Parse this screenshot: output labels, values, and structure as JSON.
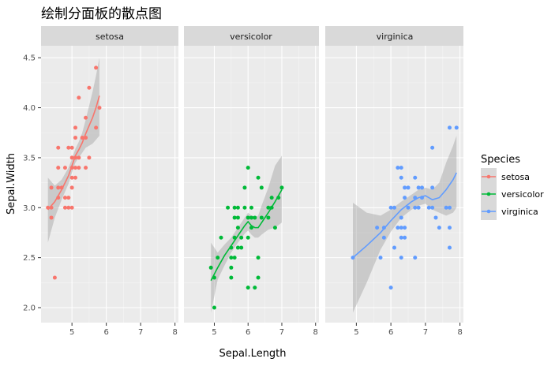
{
  "title": "绘制分面板的散点图",
  "chart_data": {
    "type": "scatter",
    "xlabel": "Sepal.Length",
    "ylabel": "Sepal.Width",
    "xlim": [
      4.1,
      8.1
    ],
    "ylim": [
      1.85,
      4.62
    ],
    "xticks": [
      5,
      6,
      7,
      8
    ],
    "xtick_labels": [
      "5",
      "6",
      "7",
      "8"
    ],
    "yticks": [
      2.0,
      2.5,
      3.0,
      3.5,
      4.0,
      4.5
    ],
    "ytick_labels": [
      "2.0",
      "2.5",
      "3.0",
      "3.5",
      "4.0",
      "4.5"
    ],
    "grid": true,
    "legend": {
      "title": "Species",
      "position": "right"
    },
    "facets": [
      {
        "name": "setosa",
        "color": "#F8766D",
        "points": [
          [
            4.3,
            3.0
          ],
          [
            4.4,
            2.9
          ],
          [
            4.4,
            3.0
          ],
          [
            4.4,
            3.2
          ],
          [
            4.5,
            2.3
          ],
          [
            4.6,
            3.1
          ],
          [
            4.6,
            3.2
          ],
          [
            4.6,
            3.4
          ],
          [
            4.6,
            3.6
          ],
          [
            4.7,
            3.2
          ],
          [
            4.8,
            3.0
          ],
          [
            4.8,
            3.1
          ],
          [
            4.8,
            3.4
          ],
          [
            4.9,
            3.0
          ],
          [
            4.9,
            3.1
          ],
          [
            4.9,
            3.6
          ],
          [
            5.0,
            3.0
          ],
          [
            5.0,
            3.2
          ],
          [
            5.0,
            3.3
          ],
          [
            5.0,
            3.4
          ],
          [
            5.0,
            3.5
          ],
          [
            5.0,
            3.6
          ],
          [
            5.1,
            3.3
          ],
          [
            5.1,
            3.4
          ],
          [
            5.1,
            3.5
          ],
          [
            5.1,
            3.7
          ],
          [
            5.1,
            3.8
          ],
          [
            5.2,
            3.4
          ],
          [
            5.2,
            3.5
          ],
          [
            5.2,
            4.1
          ],
          [
            5.3,
            3.7
          ],
          [
            5.4,
            3.4
          ],
          [
            5.4,
            3.7
          ],
          [
            5.4,
            3.9
          ],
          [
            5.5,
            3.5
          ],
          [
            5.5,
            4.2
          ],
          [
            5.7,
            3.8
          ],
          [
            5.7,
            4.4
          ],
          [
            5.8,
            4.0
          ]
        ],
        "smooth": [
          [
            4.3,
            2.98
          ],
          [
            4.5,
            3.06
          ],
          [
            4.7,
            3.18
          ],
          [
            4.9,
            3.32
          ],
          [
            5.0,
            3.42
          ],
          [
            5.1,
            3.52
          ],
          [
            5.2,
            3.58
          ],
          [
            5.3,
            3.65
          ],
          [
            5.4,
            3.74
          ],
          [
            5.5,
            3.82
          ],
          [
            5.6,
            3.9
          ],
          [
            5.7,
            4.0
          ],
          [
            5.8,
            4.12
          ]
        ],
        "band": [
          [
            4.3,
            2.65,
            3.3
          ],
          [
            4.5,
            2.9,
            3.22
          ],
          [
            4.7,
            3.08,
            3.28
          ],
          [
            4.9,
            3.24,
            3.4
          ],
          [
            5.0,
            3.35,
            3.49
          ],
          [
            5.1,
            3.45,
            3.59
          ],
          [
            5.2,
            3.5,
            3.66
          ],
          [
            5.3,
            3.55,
            3.75
          ],
          [
            5.4,
            3.6,
            3.88
          ],
          [
            5.5,
            3.62,
            4.02
          ],
          [
            5.6,
            3.64,
            4.16
          ],
          [
            5.7,
            3.68,
            4.32
          ],
          [
            5.8,
            3.72,
            4.5
          ]
        ]
      },
      {
        "name": "versicolor",
        "color": "#00BA38",
        "points": [
          [
            4.9,
            2.4
          ],
          [
            5.0,
            2.0
          ],
          [
            5.0,
            2.3
          ],
          [
            5.1,
            2.5
          ],
          [
            5.2,
            2.7
          ],
          [
            5.4,
            3.0
          ],
          [
            5.5,
            2.3
          ],
          [
            5.5,
            2.4
          ],
          [
            5.5,
            2.5
          ],
          [
            5.5,
            2.6
          ],
          [
            5.6,
            2.5
          ],
          [
            5.6,
            2.7
          ],
          [
            5.6,
            2.9
          ],
          [
            5.6,
            3.0
          ],
          [
            5.7,
            2.6
          ],
          [
            5.7,
            2.8
          ],
          [
            5.7,
            2.9
          ],
          [
            5.7,
            3.0
          ],
          [
            5.8,
            2.6
          ],
          [
            5.8,
            2.7
          ],
          [
            5.9,
            3.0
          ],
          [
            5.9,
            3.2
          ],
          [
            6.0,
            2.2
          ],
          [
            6.0,
            2.7
          ],
          [
            6.0,
            2.9
          ],
          [
            6.0,
            3.4
          ],
          [
            6.1,
            2.8
          ],
          [
            6.1,
            2.9
          ],
          [
            6.1,
            3.0
          ],
          [
            6.2,
            2.2
          ],
          [
            6.2,
            2.9
          ],
          [
            6.3,
            2.3
          ],
          [
            6.3,
            2.5
          ],
          [
            6.3,
            3.3
          ],
          [
            6.4,
            2.9
          ],
          [
            6.4,
            3.2
          ],
          [
            6.6,
            2.9
          ],
          [
            6.6,
            3.0
          ],
          [
            6.7,
            3.0
          ],
          [
            6.7,
            3.1
          ],
          [
            6.8,
            2.8
          ],
          [
            6.9,
            3.1
          ],
          [
            7.0,
            3.2
          ]
        ],
        "smooth": [
          [
            4.9,
            2.27
          ],
          [
            5.1,
            2.4
          ],
          [
            5.3,
            2.52
          ],
          [
            5.5,
            2.62
          ],
          [
            5.7,
            2.72
          ],
          [
            5.9,
            2.82
          ],
          [
            6.0,
            2.86
          ],
          [
            6.1,
            2.82
          ],
          [
            6.2,
            2.8
          ],
          [
            6.3,
            2.8
          ],
          [
            6.4,
            2.85
          ],
          [
            6.6,
            2.95
          ],
          [
            6.8,
            3.06
          ],
          [
            7.0,
            3.18
          ]
        ],
        "band": [
          [
            4.9,
            1.95,
            2.65
          ],
          [
            5.1,
            2.28,
            2.55
          ],
          [
            5.3,
            2.42,
            2.63
          ],
          [
            5.5,
            2.55,
            2.7
          ],
          [
            5.7,
            2.65,
            2.8
          ],
          [
            5.9,
            2.74,
            2.9
          ],
          [
            6.0,
            2.77,
            2.95
          ],
          [
            6.1,
            2.73,
            2.92
          ],
          [
            6.2,
            2.7,
            2.9
          ],
          [
            6.3,
            2.7,
            2.92
          ],
          [
            6.4,
            2.73,
            3.02
          ],
          [
            6.6,
            2.78,
            3.2
          ],
          [
            6.8,
            2.8,
            3.42
          ],
          [
            7.0,
            2.85,
            3.52
          ]
        ]
      },
      {
        "name": "virginica",
        "color": "#619CFF",
        "points": [
          [
            4.9,
            2.5
          ],
          [
            5.6,
            2.8
          ],
          [
            5.7,
            2.5
          ],
          [
            5.8,
            2.7
          ],
          [
            5.8,
            2.8
          ],
          [
            6.0,
            2.2
          ],
          [
            6.0,
            3.0
          ],
          [
            6.1,
            2.6
          ],
          [
            6.1,
            3.0
          ],
          [
            6.2,
            2.8
          ],
          [
            6.2,
            3.4
          ],
          [
            6.3,
            2.5
          ],
          [
            6.3,
            2.7
          ],
          [
            6.3,
            2.8
          ],
          [
            6.3,
            2.9
          ],
          [
            6.3,
            3.3
          ],
          [
            6.3,
            3.4
          ],
          [
            6.4,
            2.7
          ],
          [
            6.4,
            2.8
          ],
          [
            6.4,
            3.1
          ],
          [
            6.4,
            3.2
          ],
          [
            6.5,
            3.0
          ],
          [
            6.5,
            3.2
          ],
          [
            6.7,
            2.5
          ],
          [
            6.7,
            3.0
          ],
          [
            6.7,
            3.1
          ],
          [
            6.7,
            3.3
          ],
          [
            6.8,
            3.0
          ],
          [
            6.8,
            3.2
          ],
          [
            6.9,
            3.1
          ],
          [
            6.9,
            3.2
          ],
          [
            7.1,
            3.0
          ],
          [
            7.2,
            3.0
          ],
          [
            7.2,
            3.2
          ],
          [
            7.2,
            3.6
          ],
          [
            7.3,
            2.9
          ],
          [
            7.4,
            2.8
          ],
          [
            7.6,
            3.0
          ],
          [
            7.7,
            2.6
          ],
          [
            7.7,
            2.8
          ],
          [
            7.7,
            3.0
          ],
          [
            7.7,
            3.8
          ],
          [
            7.9,
            3.8
          ]
        ],
        "smooth": [
          [
            4.9,
            2.5
          ],
          [
            5.3,
            2.62
          ],
          [
            5.7,
            2.75
          ],
          [
            6.0,
            2.87
          ],
          [
            6.3,
            2.98
          ],
          [
            6.6,
            3.06
          ],
          [
            6.8,
            3.1
          ],
          [
            7.0,
            3.12
          ],
          [
            7.2,
            3.08
          ],
          [
            7.4,
            3.1
          ],
          [
            7.6,
            3.18
          ],
          [
            7.8,
            3.28
          ],
          [
            7.9,
            3.35
          ]
        ],
        "band": [
          [
            4.9,
            1.95,
            3.05
          ],
          [
            5.3,
            2.25,
            2.95
          ],
          [
            5.7,
            2.58,
            2.92
          ],
          [
            6.0,
            2.76,
            2.98
          ],
          [
            6.3,
            2.9,
            3.06
          ],
          [
            6.6,
            2.98,
            3.13
          ],
          [
            6.8,
            3.02,
            3.18
          ],
          [
            7.0,
            3.04,
            3.2
          ],
          [
            7.2,
            2.98,
            3.18
          ],
          [
            7.4,
            2.95,
            3.25
          ],
          [
            7.6,
            2.92,
            3.45
          ],
          [
            7.8,
            2.95,
            3.62
          ],
          [
            7.9,
            3.0,
            3.72
          ]
        ]
      }
    ]
  }
}
